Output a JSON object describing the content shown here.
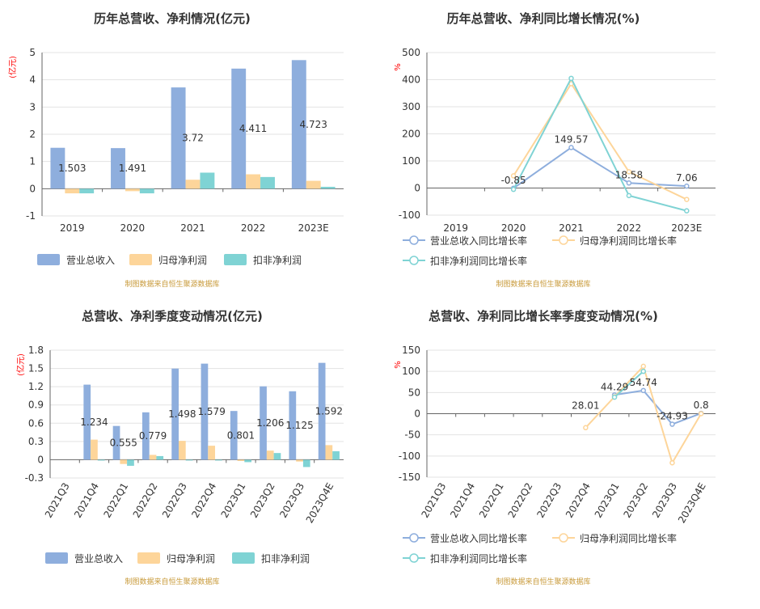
{
  "colors": {
    "revenue": "#8eaedd",
    "net_profit": "#fdd59a",
    "deducted_profit": "#7fd3d4",
    "axis_label": "#ff0000",
    "source": "#c89a3a",
    "grid": "#e3e3e3",
    "title": "#333333",
    "text": "#333333"
  },
  "chart_data": [
    {
      "type": "bar",
      "title": "历年总营收、净利情况(亿元)",
      "ylabel": "(亿元)",
      "ylim": [
        -1,
        5
      ],
      "yticks": [
        -1,
        0,
        1,
        2,
        3,
        4,
        5
      ],
      "categories": [
        "2019",
        "2020",
        "2021",
        "2022",
        "2023E"
      ],
      "series": [
        {
          "name": "营业总收入",
          "values": [
            1.503,
            1.491,
            3.72,
            4.411,
            4.723
          ]
        },
        {
          "name": "归母净利润",
          "values": [
            -0.17,
            -0.09,
            0.33,
            0.53,
            0.29
          ]
        },
        {
          "name": "扣非净利润",
          "values": [
            -0.17,
            -0.17,
            0.59,
            0.43,
            0.07
          ]
        }
      ],
      "data_labels": [
        "1.503",
        "1.491",
        "3.72",
        "4.411",
        "4.723"
      ],
      "source": "制图数据来自恒生聚源数据库",
      "grid": true,
      "legend": "bottom-left"
    },
    {
      "type": "line",
      "title": "历年总营收、净利同比增长情况(%)",
      "ylabel": "%",
      "ylim": [
        -100,
        500
      ],
      "yticks": [
        -100,
        0,
        100,
        200,
        300,
        400,
        500
      ],
      "categories": [
        "2019",
        "2020",
        "2021",
        "2022",
        "2023E"
      ],
      "series": [
        {
          "name": "营业总收入同比增长率",
          "values": [
            null,
            -0.85,
            149.57,
            18.58,
            7.06
          ]
        },
        {
          "name": "归母净利润同比增长率",
          "values": [
            null,
            45,
            385,
            60,
            -42
          ]
        },
        {
          "name": "扣非净利润同比增长率",
          "values": [
            null,
            -5,
            405,
            -28,
            -84
          ]
        }
      ],
      "data_labels": [
        "",
        "-0.85",
        "149.57",
        "18.58",
        "7.06"
      ],
      "source": "制图数据来自恒生聚源数据库",
      "grid": true,
      "legend": "bottom-left"
    },
    {
      "type": "bar",
      "title": "总营收、净利季度变动情况(亿元)",
      "ylabel": "(亿元)",
      "ylim": [
        -0.3,
        1.8
      ],
      "yticks": [
        "-0.3",
        "0",
        "0.3",
        "0.6",
        "0.9",
        "1.2",
        "1.5",
        "1.8"
      ],
      "categories": [
        "2021Q3",
        "2021Q4",
        "2022Q1",
        "2022Q2",
        "2022Q3",
        "2022Q4",
        "2023Q1",
        "2023Q2",
        "2023Q3",
        "2023Q4E"
      ],
      "series": [
        {
          "name": "营业总收入",
          "values": [
            null,
            1.234,
            0.555,
            0.779,
            1.498,
            1.579,
            0.801,
            1.206,
            1.125,
            1.592
          ]
        },
        {
          "name": "归母净利润",
          "values": [
            null,
            0.33,
            -0.07,
            0.08,
            0.31,
            0.23,
            -0.02,
            0.15,
            -0.03,
            0.24
          ]
        },
        {
          "name": "扣非净利润",
          "values": [
            null,
            0.0,
            -0.1,
            0.06,
            0.0,
            0.0,
            -0.04,
            0.11,
            -0.12,
            0.14
          ]
        }
      ],
      "data_labels": [
        "",
        "1.234",
        "0.555",
        "0.779",
        "1.498",
        "1.579",
        "0.801",
        "1.206",
        "1.125",
        "1.592"
      ],
      "source": "制图数据来自恒生聚源数据库",
      "grid": true,
      "legend": "bottom-left"
    },
    {
      "type": "line",
      "title": "总营收、净利同比增长率季度变动情况(%)",
      "ylabel": "%",
      "ylim": [
        -150,
        150
      ],
      "yticks": [
        -150,
        -100,
        -50,
        0,
        50,
        100,
        150
      ],
      "categories": [
        "2021Q3",
        "2021Q4",
        "2022Q1",
        "2022Q2",
        "2022Q3",
        "2022Q4",
        "2023Q1",
        "2023Q2",
        "2023Q3",
        "2023Q4E"
      ],
      "series": [
        {
          "name": "营业总收入同比增长率",
          "values": [
            null,
            null,
            null,
            null,
            null,
            null,
            44.29,
            54.74,
            -24.93,
            0.8
          ]
        },
        {
          "name": "归母净利润同比增长率",
          "values": [
            null,
            null,
            null,
            null,
            null,
            -33,
            40,
            112,
            -116,
            0
          ]
        },
        {
          "name": "扣非净利润同比增长率",
          "values": [
            null,
            null,
            null,
            null,
            null,
            null,
            39,
            100,
            null,
            null
          ]
        }
      ],
      "data_labels": [
        "",
        "",
        "",
        "",
        "",
        "28.01",
        "44.29",
        "54.74",
        "-24.93",
        "0.8"
      ],
      "source": "制图数据来自恒生聚源数据库",
      "grid": true,
      "legend": "bottom-left"
    }
  ]
}
